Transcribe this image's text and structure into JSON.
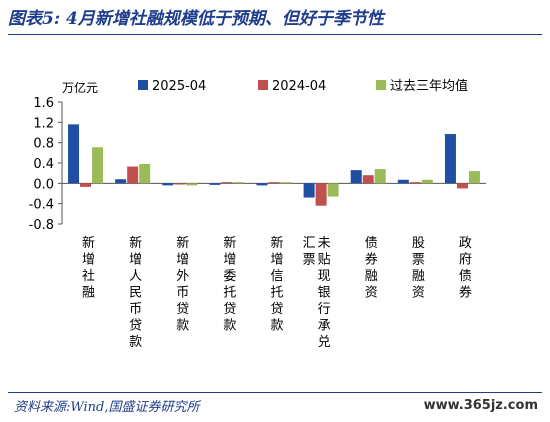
{
  "title": "图表5:  4月新增社融规模低于预期、但好于季节性",
  "source": "资料来源:Wind,国盛证券研究所",
  "watermark": "www.365jz.com",
  "chart_data": {
    "type": "bar",
    "ylabel": "万亿元",
    "ylim": [
      -0.8,
      1.6
    ],
    "yticks": [
      "1.6",
      "1.2",
      "0.8",
      "0.4",
      "0.0",
      "-0.4",
      "-0.8"
    ],
    "ytick_values": [
      1.6,
      1.2,
      0.8,
      0.4,
      0.0,
      -0.4,
      -0.8
    ],
    "legend_position": "top",
    "categories": [
      "新增社融",
      "新增人民币贷款",
      "新增外币贷款",
      "新增委托贷款",
      "新增信托贷款",
      "未贴现银行承兑汇票",
      "债券融资",
      "股票融资",
      "政府债券"
    ],
    "category_label_lines": [
      [
        [
          "新",
          "增",
          "社",
          "融"
        ]
      ],
      [
        [
          "新",
          "增",
          "人",
          "民",
          "币",
          "贷",
          "款"
        ]
      ],
      [
        [
          "新",
          "增",
          "外",
          "币",
          "贷",
          "款"
        ]
      ],
      [
        [
          "新",
          "增",
          "委",
          "托",
          "贷",
          "款"
        ]
      ],
      [
        [
          "新",
          "增",
          "信",
          "托",
          "贷",
          "款"
        ]
      ],
      [
        [
          "未",
          "贴",
          "现",
          "银",
          "行",
          "承",
          "兑"
        ],
        [
          "汇",
          "票"
        ]
      ],
      [
        [
          "债",
          "券",
          "融",
          "资"
        ]
      ],
      [
        [
          "股",
          "票",
          "融",
          "资"
        ]
      ],
      [
        [
          "政",
          "府",
          "债",
          "券"
        ]
      ]
    ],
    "series": [
      {
        "name": "2025-04",
        "color": "#1f4ea3",
        "values": [
          1.16,
          0.08,
          -0.04,
          -0.03,
          -0.04,
          -0.28,
          0.26,
          0.07,
          0.97
        ]
      },
      {
        "name": "2024-04",
        "color": "#c0504d",
        "values": [
          -0.07,
          0.33,
          -0.02,
          0.0,
          0.0,
          -0.44,
          0.16,
          0.01,
          -0.1
        ]
      },
      {
        "name": "过去三年均值",
        "color": "#9bbb59",
        "values": [
          0.71,
          0.38,
          -0.04,
          0.0,
          0.0,
          -0.26,
          0.28,
          0.07,
          0.24
        ]
      }
    ]
  }
}
